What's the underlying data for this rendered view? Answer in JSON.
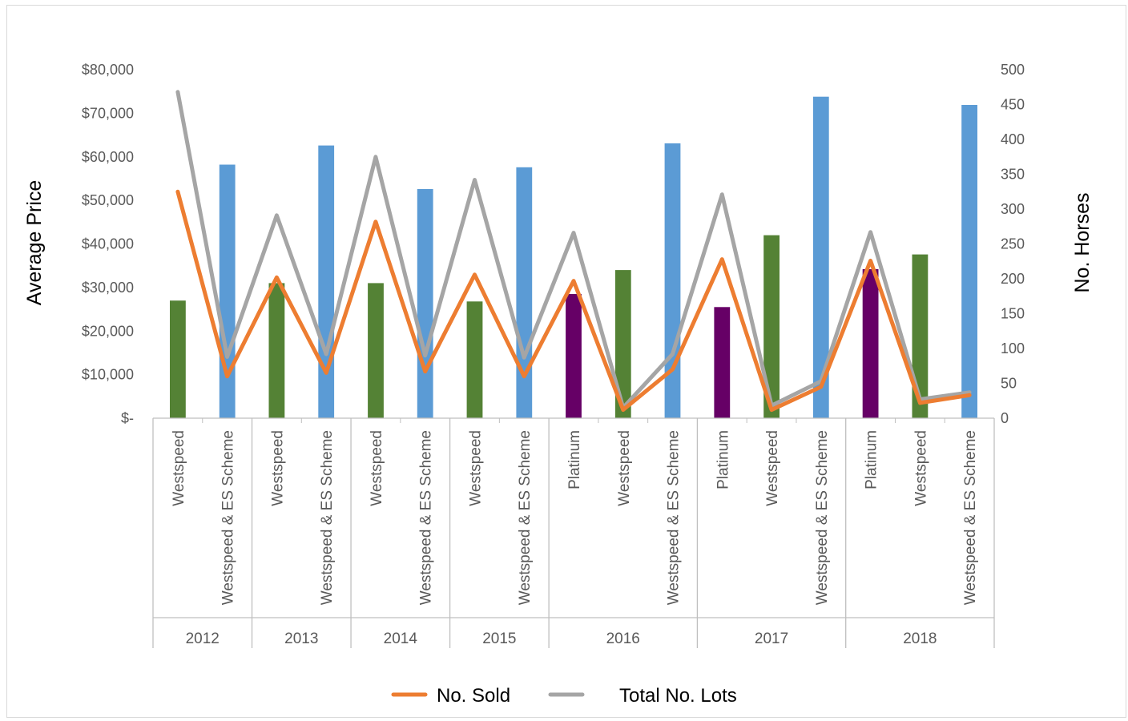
{
  "chart_data": {
    "type": "bar",
    "title": "",
    "y_left": {
      "label": "Average Price",
      "range": [
        0,
        80000
      ],
      "ticks": [
        0,
        10000,
        20000,
        30000,
        40000,
        50000,
        60000,
        70000,
        80000
      ],
      "tick_labels": [
        "$-",
        "$10,000",
        "$20,000",
        "$30,000",
        "$40,000",
        "$50,000",
        "$60,000",
        "$70,000",
        "$80,000"
      ]
    },
    "y_right": {
      "label": "No. Horses",
      "range": [
        0,
        500
      ],
      "ticks": [
        0,
        50,
        100,
        150,
        200,
        250,
        300,
        350,
        400,
        450,
        500
      ],
      "tick_labels": [
        "0",
        "50",
        "100",
        "150",
        "200",
        "250",
        "300",
        "350",
        "400",
        "450",
        "500"
      ]
    },
    "grid": false,
    "legend_position": "bottom",
    "colors": {
      "Westspeed": "#548235",
      "Westspeed & ES Scheme": "#5b9bd5",
      "Platinum": "#660066",
      "No. Sold": "#ed7d31",
      "Total No. Lots": "#a5a5a5"
    },
    "groups": [
      {
        "year": "2012",
        "categories": [
          "Westspeed",
          "Westspeed & ES Scheme"
        ]
      },
      {
        "year": "2013",
        "categories": [
          "Westspeed",
          "Westspeed & ES Scheme"
        ]
      },
      {
        "year": "2014",
        "categories": [
          "Westspeed",
          "Westspeed & ES Scheme"
        ]
      },
      {
        "year": "2015",
        "categories": [
          "Westspeed",
          "Westspeed & ES Scheme"
        ]
      },
      {
        "year": "2016",
        "categories": [
          "Platinum",
          "Westspeed",
          "Westspeed & ES Scheme"
        ]
      },
      {
        "year": "2017",
        "categories": [
          "Platinum",
          "Westspeed",
          "Westspeed & ES Scheme"
        ]
      },
      {
        "year": "2018",
        "categories": [
          "Platinum",
          "Westspeed",
          "Westspeed & ES Scheme"
        ]
      }
    ],
    "bars": {
      "axis": "left",
      "values": [
        27000,
        58200,
        31000,
        62600,
        31000,
        52600,
        26800,
        57600,
        28500,
        34000,
        63100,
        25500,
        42000,
        73800,
        34200,
        37600,
        71900
      ]
    },
    "lines": [
      {
        "name": "No. Sold",
        "axis": "right",
        "values": [
          325,
          60,
          202,
          65,
          282,
          67,
          206,
          60,
          197,
          12,
          70,
          228,
          12,
          45,
          226,
          22,
          33
        ]
      },
      {
        "name": "Total No. Lots",
        "axis": "right",
        "values": [
          468,
          88,
          291,
          92,
          375,
          90,
          342,
          87,
          266,
          15,
          92,
          321,
          18,
          53,
          267,
          27,
          37
        ]
      }
    ]
  }
}
